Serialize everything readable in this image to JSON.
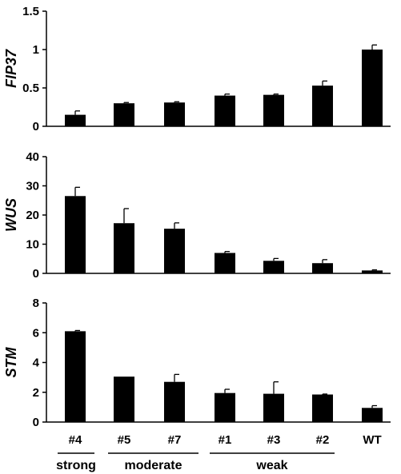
{
  "chart_data": [
    {
      "type": "bar",
      "ylabel": "FIP37",
      "categories": [
        "#4",
        "#5",
        "#7",
        "#1",
        "#3",
        "#2",
        "WT"
      ],
      "values": [
        0.15,
        0.3,
        0.31,
        0.4,
        0.41,
        0.53,
        1.0
      ],
      "errors": [
        0.05,
        0.01,
        0.01,
        0.02,
        0.01,
        0.06,
        0.06
      ],
      "ylim": [
        0,
        1.5
      ],
      "yticks": [
        "0",
        "0.5",
        "1",
        "1.5"
      ],
      "ytick_values": [
        0,
        0.5,
        1,
        1.5
      ],
      "bar_color": "#000000"
    },
    {
      "type": "bar",
      "ylabel": "WUS",
      "categories": [
        "#4",
        "#5",
        "#7",
        "#1",
        "#3",
        "#2",
        "WT"
      ],
      "values": [
        26.5,
        17.2,
        15.3,
        7.0,
        4.3,
        3.5,
        1.0
      ],
      "errors": [
        3.0,
        5.0,
        2.0,
        0.5,
        0.8,
        1.2,
        0.2
      ],
      "ylim": [
        0,
        40
      ],
      "yticks": [
        "0",
        "10",
        "20",
        "30",
        "40"
      ],
      "ytick_values": [
        0,
        10,
        20,
        30,
        40
      ],
      "bar_color": "#000000"
    },
    {
      "type": "bar",
      "ylabel": "STM",
      "categories": [
        "#4",
        "#5",
        "#7",
        "#1",
        "#3",
        "#2",
        "WT"
      ],
      "values": [
        6.1,
        3.05,
        2.7,
        1.95,
        1.9,
        1.85,
        0.95
      ],
      "errors": [
        0.05,
        0.0,
        0.5,
        0.25,
        0.8,
        0.03,
        0.15
      ],
      "ylim": [
        0,
        8
      ],
      "yticks": [
        "0",
        "2",
        "4",
        "6",
        "8"
      ],
      "ytick_values": [
        0,
        2,
        4,
        6,
        8
      ],
      "bar_color": "#000000"
    }
  ],
  "x_axis": {
    "categories": [
      "#4",
      "#5",
      "#7",
      "#1",
      "#3",
      "#2",
      "WT"
    ],
    "groups": [
      {
        "label": "strong",
        "members": [
          "#4"
        ]
      },
      {
        "label": "moderate",
        "members": [
          "#5",
          "#7"
        ]
      },
      {
        "label": "weak",
        "members": [
          "#1",
          "#3",
          "#2"
        ]
      }
    ]
  }
}
